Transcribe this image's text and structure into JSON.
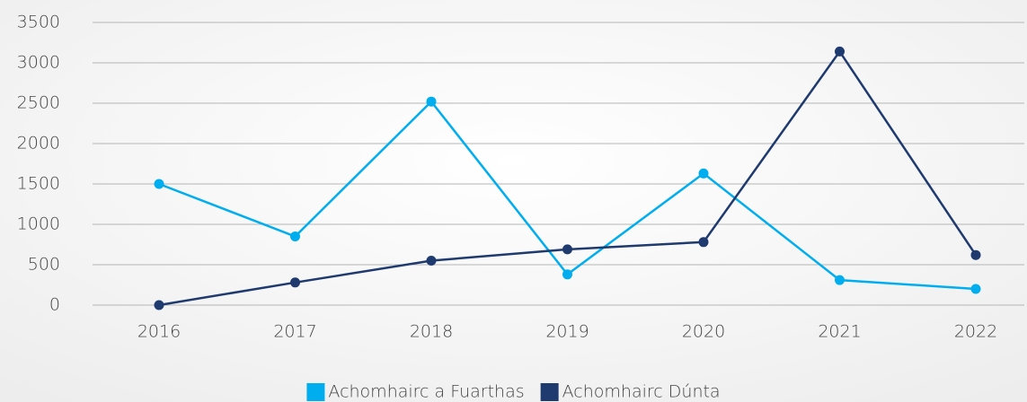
{
  "chart_data": {
    "type": "line",
    "categories": [
      "2016",
      "2017",
      "2018",
      "2019",
      "2020",
      "2021",
      "2022"
    ],
    "series": [
      {
        "name": "Achomhairc a Fuarthas",
        "color": "#00aeef",
        "values": [
          1500,
          850,
          2520,
          380,
          1630,
          310,
          200
        ]
      },
      {
        "name": "Achomhairc Dúnta",
        "color": "#1f3a6e",
        "values": [
          0,
          280,
          550,
          690,
          780,
          3140,
          620
        ]
      }
    ],
    "ylim": [
      0,
      3500
    ],
    "yticks": [
      0,
      500,
      1000,
      1500,
      2000,
      2500,
      3000,
      3500
    ],
    "grid": true,
    "legend": "bottom"
  }
}
